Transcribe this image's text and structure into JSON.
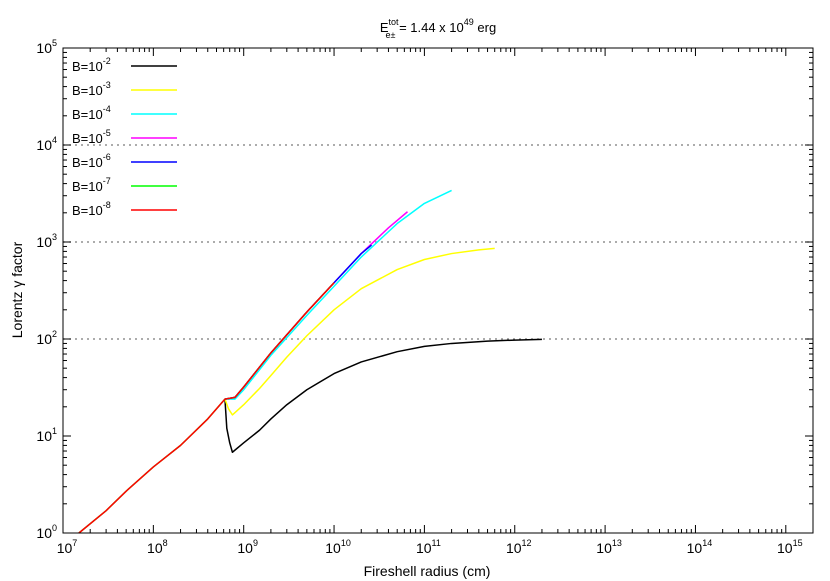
{
  "chart_data": {
    "type": "line",
    "title": {
      "base": "E",
      "sup": "tot",
      "sub": "e±",
      "rest": " = 1.44 x 10",
      "exp": "49",
      "unit": " erg"
    },
    "xlabel": "Fireshell radius (cm)",
    "ylabel": "Lorentz γ factor",
    "x_scale": "log",
    "y_scale": "log",
    "xlim": [
      10000000.0,
      2000000000000000.0
    ],
    "ylim": [
      1,
      100000.0
    ],
    "x_ticks": [
      {
        "base": "10",
        "exp": "7",
        "value": 10000000.0
      },
      {
        "base": "10",
        "exp": "8",
        "value": 100000000.0
      },
      {
        "base": "10",
        "exp": "9",
        "value": 1000000000.0
      },
      {
        "base": "10",
        "exp": "10",
        "value": 10000000000.0
      },
      {
        "base": "10",
        "exp": "11",
        "value": 100000000000.0
      },
      {
        "base": "10",
        "exp": "12",
        "value": 1000000000000.0
      },
      {
        "base": "10",
        "exp": "13",
        "value": 10000000000000.0
      },
      {
        "base": "10",
        "exp": "14",
        "value": 100000000000000.0
      },
      {
        "base": "10",
        "exp": "15",
        "value": 1000000000000000.0
      }
    ],
    "y_ticks": [
      {
        "base": "10",
        "exp": "0",
        "value": 1
      },
      {
        "base": "10",
        "exp": "1",
        "value": 10
      },
      {
        "base": "10",
        "exp": "2",
        "value": 100
      },
      {
        "base": "10",
        "exp": "3",
        "value": 1000
      },
      {
        "base": "10",
        "exp": "4",
        "value": 10000
      },
      {
        "base": "10",
        "exp": "5",
        "value": 100000
      }
    ],
    "gridlines_y": [
      100,
      1000,
      10000
    ],
    "legend_position": "top-left",
    "series": [
      {
        "name": "B=10",
        "exp": "-2",
        "color": "#000000",
        "x": [
          620000000.0,
          650000000.0,
          700000000.0,
          750000000.0,
          1000000000.0,
          1500000000.0,
          2000000000.0,
          3000000000.0,
          5000000000.0,
          10000000000.0,
          20000000000.0,
          50000000000.0,
          100000000000.0,
          200000000000.0,
          500000000000.0,
          1000000000000.0,
          2000000000000.0
        ],
        "y": [
          24,
          12,
          8.5,
          6.8,
          8.5,
          11.5,
          15,
          21,
          30,
          44,
          58,
          74,
          84,
          90,
          95,
          97.5,
          99
        ]
      },
      {
        "name": "B=10",
        "exp": "-3",
        "color": "#ffff00",
        "x": [
          620000000.0,
          680000000.0,
          750000000.0,
          1000000000.0,
          1500000000.0,
          2000000000.0,
          3000000000.0,
          5000000000.0,
          10000000000.0,
          20000000000.0,
          50000000000.0,
          100000000000.0,
          200000000000.0,
          400000000000.0,
          600000000000.0
        ],
        "y": [
          24,
          19,
          16.5,
          21,
          31,
          42,
          65,
          108,
          200,
          330,
          520,
          660,
          760,
          830,
          860
        ]
      },
      {
        "name": "B=10",
        "exp": "-4",
        "color": "#00ffff",
        "x": [
          620000000.0,
          800000000.0,
          1000000000.0,
          2000000000.0,
          5000000000.0,
          10000000000.0,
          20000000000.0,
          50000000000.0,
          100000000000.0,
          200000000000.0
        ],
        "y": [
          24,
          24,
          30,
          68,
          175,
          350,
          700,
          1550,
          2500,
          3400
        ]
      },
      {
        "name": "B=10",
        "exp": "-5",
        "color": "#ff00ff",
        "x": [
          620000000.0,
          800000000.0,
          1000000000.0,
          2000000000.0,
          5000000000.0,
          10000000000.0,
          20000000000.0,
          40000000000.0,
          65000000000.0
        ],
        "y": [
          24,
          25,
          32,
          72,
          190,
          380,
          760,
          1400,
          2050
        ]
      },
      {
        "name": "B=10",
        "exp": "-6",
        "color": "#0000ff",
        "x": [
          620000000.0,
          800000000.0,
          1000000000.0,
          2000000000.0,
          5000000000.0,
          10000000000.0,
          20000000000.0,
          26000000000.0
        ],
        "y": [
          24,
          25,
          32,
          72,
          190,
          380,
          760,
          930
        ]
      },
      {
        "name": "B=10",
        "exp": "-7",
        "color": "#00ff00",
        "x": [
          15000000.0,
          30000000.0,
          50000000.0,
          100000000.0,
          200000000.0,
          400000000.0,
          620000000.0,
          800000000.0,
          1000000000.0,
          2000000000.0,
          5000000000.0,
          10000000000.0
        ],
        "y": [
          1,
          1.7,
          2.7,
          4.8,
          8,
          15,
          24,
          25,
          32,
          72,
          190,
          380
        ]
      },
      {
        "name": "B=10",
        "exp": "-8",
        "color": "#ff0000",
        "x": [
          15000000.0,
          30000000.0,
          50000000.0,
          100000000.0,
          200000000.0,
          400000000.0,
          620000000.0,
          800000000.0,
          1000000000.0,
          2000000000.0,
          5000000000.0,
          10000000000.0
        ],
        "y": [
          1,
          1.7,
          2.7,
          4.8,
          8,
          15,
          24,
          25,
          32,
          72,
          190,
          380
        ]
      }
    ]
  }
}
